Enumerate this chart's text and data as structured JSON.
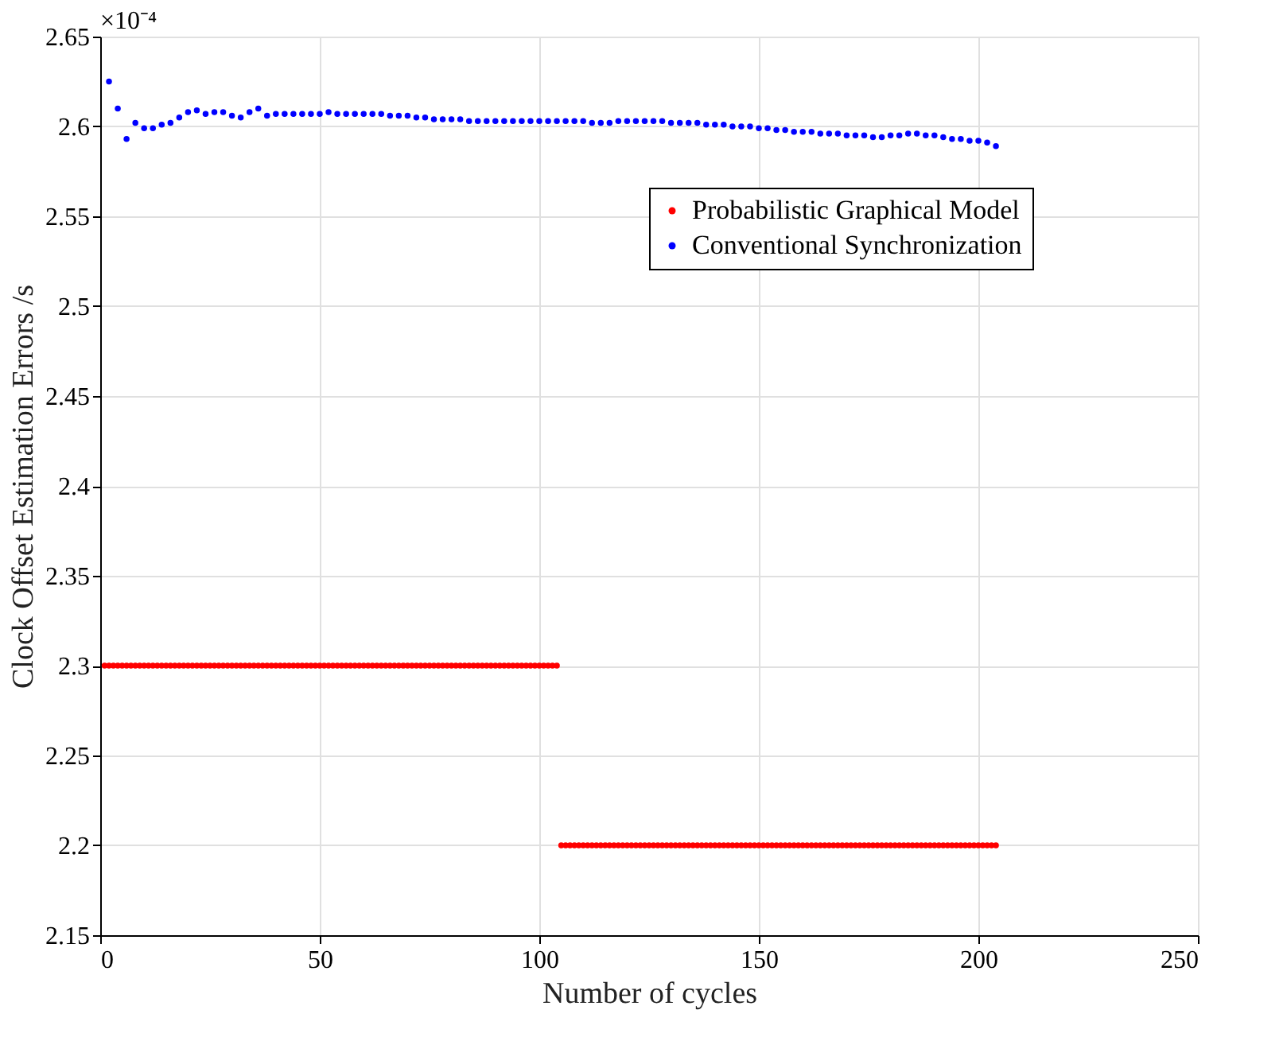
{
  "chart_data": {
    "type": "scatter",
    "xlabel": "Number of cycles",
    "ylabel": "Clock Offset Estimation Errors /s",
    "annotations": [
      "×10⁻⁴"
    ],
    "xlim": [
      0,
      250
    ],
    "xticks": [
      0,
      50,
      100,
      150,
      200,
      250
    ],
    "ylim": [
      2.15,
      2.65
    ],
    "yticks": [
      2.15,
      2.2,
      2.25,
      2.3,
      2.35,
      2.4,
      2.45,
      2.5,
      2.55,
      2.6,
      2.65
    ],
    "grid": true,
    "legend": "top right",
    "marker": "circle",
    "series": [
      {
        "name": "Probabilistic Graphical Model",
        "color": "#ff0000",
        "x": [
          1,
          2,
          3,
          4,
          5,
          6,
          7,
          8,
          9,
          10,
          11,
          12,
          13,
          14,
          15,
          16,
          17,
          18,
          19,
          20,
          21,
          22,
          23,
          24,
          25,
          26,
          27,
          28,
          29,
          30,
          31,
          32,
          33,
          34,
          35,
          36,
          37,
          38,
          39,
          40,
          41,
          42,
          43,
          44,
          45,
          46,
          47,
          48,
          49,
          50,
          51,
          52,
          53,
          54,
          55,
          56,
          57,
          58,
          59,
          60,
          61,
          62,
          63,
          64,
          65,
          66,
          67,
          68,
          69,
          70,
          71,
          72,
          73,
          74,
          75,
          76,
          77,
          78,
          79,
          80,
          81,
          82,
          83,
          84,
          85,
          86,
          87,
          88,
          89,
          90,
          91,
          92,
          93,
          94,
          95,
          96,
          97,
          98,
          99,
          100,
          101,
          102,
          103,
          104,
          105,
          106,
          107,
          108,
          109,
          110,
          111,
          112,
          113,
          114,
          115,
          116,
          117,
          118,
          119,
          120,
          121,
          122,
          123,
          124,
          125,
          126,
          127,
          128,
          129,
          130,
          131,
          132,
          133,
          134,
          135,
          136,
          137,
          138,
          139,
          140,
          141,
          142,
          143,
          144,
          145,
          146,
          147,
          148,
          149,
          150,
          151,
          152,
          153,
          154,
          155,
          156,
          157,
          158,
          159,
          160,
          161,
          162,
          163,
          164,
          165,
          166,
          167,
          168,
          169,
          170,
          171,
          172,
          173,
          174,
          175,
          176,
          177,
          178,
          179,
          180,
          181,
          182,
          183,
          184,
          185,
          186,
          187,
          188,
          189,
          190,
          191,
          192,
          193,
          194,
          195,
          196,
          197,
          198,
          199,
          200,
          201,
          202,
          203,
          204
        ],
        "values": [
          2.3,
          2.3,
          2.3,
          2.3,
          2.3,
          2.3,
          2.3,
          2.3,
          2.3,
          2.3,
          2.3,
          2.3,
          2.3,
          2.3,
          2.3,
          2.3,
          2.3,
          2.3,
          2.3,
          2.3,
          2.3,
          2.3,
          2.3,
          2.3,
          2.3,
          2.3,
          2.3,
          2.3,
          2.3,
          2.3,
          2.3,
          2.3,
          2.3,
          2.3,
          2.3,
          2.3,
          2.3,
          2.3,
          2.3,
          2.3,
          2.3,
          2.3,
          2.3,
          2.3,
          2.3,
          2.3,
          2.3,
          2.3,
          2.3,
          2.3,
          2.3,
          2.3,
          2.3,
          2.3,
          2.3,
          2.3,
          2.3,
          2.3,
          2.3,
          2.3,
          2.3,
          2.3,
          2.3,
          2.3,
          2.3,
          2.3,
          2.3,
          2.3,
          2.3,
          2.3,
          2.3,
          2.3,
          2.3,
          2.3,
          2.3,
          2.3,
          2.3,
          2.3,
          2.3,
          2.3,
          2.3,
          2.3,
          2.3,
          2.3,
          2.3,
          2.3,
          2.3,
          2.3,
          2.3,
          2.3,
          2.3,
          2.3,
          2.3,
          2.3,
          2.3,
          2.3,
          2.3,
          2.3,
          2.3,
          2.3,
          2.3,
          2.3,
          2.3,
          2.3,
          2.2,
          2.2,
          2.2,
          2.2,
          2.2,
          2.2,
          2.2,
          2.2,
          2.2,
          2.2,
          2.2,
          2.2,
          2.2,
          2.2,
          2.2,
          2.2,
          2.2,
          2.2,
          2.2,
          2.2,
          2.2,
          2.2,
          2.2,
          2.2,
          2.2,
          2.2,
          2.2,
          2.2,
          2.2,
          2.2,
          2.2,
          2.2,
          2.2,
          2.2,
          2.2,
          2.2,
          2.2,
          2.2,
          2.2,
          2.2,
          2.2,
          2.2,
          2.2,
          2.2,
          2.2,
          2.2,
          2.2,
          2.2,
          2.2,
          2.2,
          2.2,
          2.2,
          2.2,
          2.2,
          2.2,
          2.2,
          2.2,
          2.2,
          2.2,
          2.2,
          2.2,
          2.2,
          2.2,
          2.2,
          2.2,
          2.2,
          2.2,
          2.2,
          2.2,
          2.2,
          2.2,
          2.2,
          2.2,
          2.2,
          2.2,
          2.2,
          2.2,
          2.2,
          2.2,
          2.2,
          2.2,
          2.2,
          2.2,
          2.2,
          2.2,
          2.2,
          2.2,
          2.2,
          2.2,
          2.2,
          2.2,
          2.2,
          2.2,
          2.2,
          2.2,
          2.2,
          2.2,
          2.2,
          2.2,
          2.2
        ]
      },
      {
        "name": "Conventional Synchronization",
        "color": "#0000ff",
        "x": [
          2,
          4,
          6,
          8,
          10,
          12,
          14,
          16,
          18,
          20,
          22,
          24,
          26,
          28,
          30,
          32,
          34,
          36,
          38,
          40,
          42,
          44,
          46,
          48,
          50,
          52,
          54,
          56,
          58,
          60,
          62,
          64,
          66,
          68,
          70,
          72,
          74,
          76,
          78,
          80,
          82,
          84,
          86,
          88,
          90,
          92,
          94,
          96,
          98,
          100,
          102,
          104,
          106,
          108,
          110,
          112,
          114,
          116,
          118,
          120,
          122,
          124,
          126,
          128,
          130,
          132,
          134,
          136,
          138,
          140,
          142,
          144,
          146,
          148,
          150,
          152,
          154,
          156,
          158,
          160,
          162,
          164,
          166,
          168,
          170,
          172,
          174,
          176,
          178,
          180,
          182,
          184,
          186,
          188,
          190,
          192,
          194,
          196,
          198,
          200,
          202,
          204
        ],
        "values": [
          2.625,
          2.61,
          2.593,
          2.602,
          2.599,
          2.599,
          2.601,
          2.602,
          2.605,
          2.608,
          2.609,
          2.607,
          2.608,
          2.608,
          2.606,
          2.605,
          2.608,
          2.61,
          2.606,
          2.607,
          2.607,
          2.607,
          2.607,
          2.607,
          2.607,
          2.608,
          2.607,
          2.607,
          2.607,
          2.607,
          2.607,
          2.607,
          2.606,
          2.606,
          2.606,
          2.605,
          2.605,
          2.604,
          2.604,
          2.604,
          2.604,
          2.603,
          2.603,
          2.603,
          2.603,
          2.603,
          2.603,
          2.603,
          2.603,
          2.603,
          2.603,
          2.603,
          2.603,
          2.603,
          2.603,
          2.602,
          2.602,
          2.602,
          2.603,
          2.603,
          2.603,
          2.603,
          2.603,
          2.603,
          2.602,
          2.602,
          2.602,
          2.602,
          2.601,
          2.601,
          2.601,
          2.6,
          2.6,
          2.6,
          2.599,
          2.599,
          2.598,
          2.598,
          2.597,
          2.597,
          2.597,
          2.596,
          2.596,
          2.596,
          2.595,
          2.595,
          2.595,
          2.594,
          2.594,
          2.595,
          2.595,
          2.596,
          2.596,
          2.595,
          2.595,
          2.594,
          2.593,
          2.593,
          2.592,
          2.592,
          2.591,
          2.589
        ]
      }
    ]
  }
}
